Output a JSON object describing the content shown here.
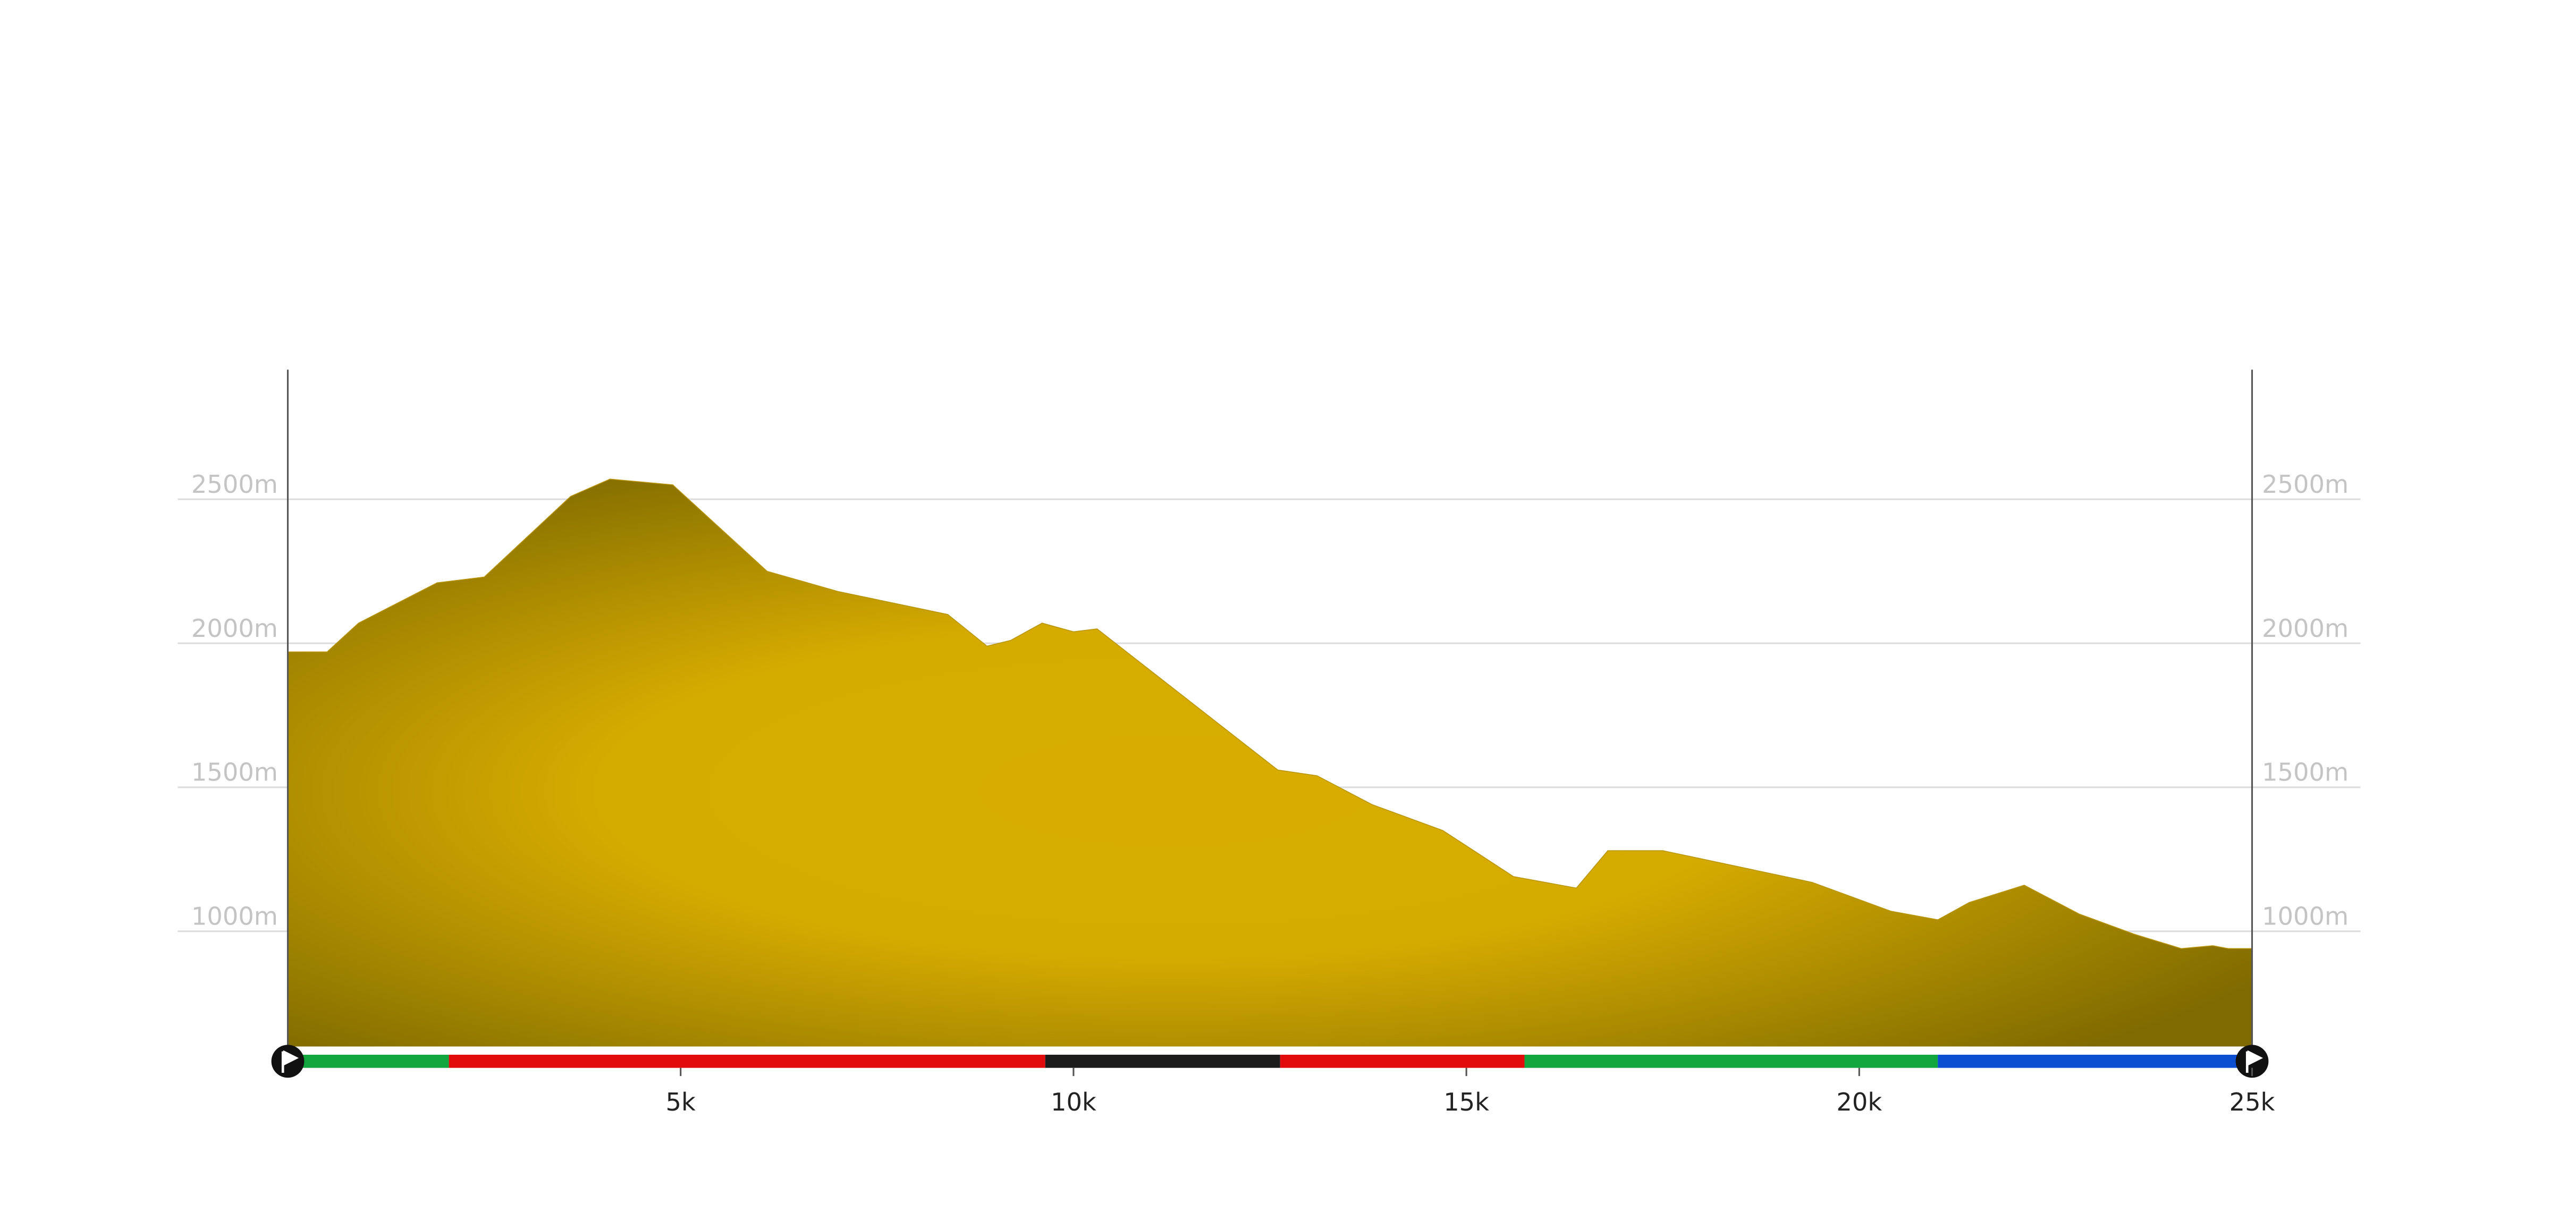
{
  "chart_data": {
    "type": "area",
    "x": [
      0,
      0.5,
      0.9,
      1.9,
      2.5,
      3.6,
      4.1,
      4.9,
      6.1,
      7.0,
      8.4,
      8.9,
      9.2,
      9.6,
      10.0,
      10.3,
      12.6,
      13.1,
      13.8,
      14.7,
      15.6,
      16.4,
      16.8,
      17.5,
      19.4,
      20.4,
      21.0,
      21.4,
      22.1,
      22.8,
      23.5,
      24.1,
      24.5,
      24.7,
      25
    ],
    "y": [
      1970,
      1970,
      2070,
      2210,
      2230,
      2510,
      2570,
      2550,
      2250,
      2180,
      2100,
      1990,
      2010,
      2070,
      2040,
      2050,
      1560,
      1540,
      1440,
      1350,
      1190,
      1150,
      1280,
      1280,
      1170,
      1070,
      1040,
      1100,
      1160,
      1060,
      990,
      940,
      950,
      940,
      940
    ],
    "xlim": [
      0,
      25
    ],
    "ylim": [
      600,
      2950
    ],
    "xticks": [
      {
        "value": 5,
        "label": "5k"
      },
      {
        "value": 10,
        "label": "10k"
      },
      {
        "value": 15,
        "label": "15k"
      },
      {
        "value": 20,
        "label": "20k"
      },
      {
        "value": 25,
        "label": "25k"
      }
    ],
    "yticks": [
      {
        "value": 1000,
        "label": "1000m"
      },
      {
        "value": 1500,
        "label": "1500m"
      },
      {
        "value": 2000,
        "label": "2000m"
      },
      {
        "value": 2500,
        "label": "2500m"
      }
    ],
    "grid": true,
    "segments": [
      {
        "start": 0,
        "end": 2.05,
        "color": "#12a73e"
      },
      {
        "start": 2.05,
        "end": 9.64,
        "color": "#e30b0b"
      },
      {
        "start": 9.64,
        "end": 12.63,
        "color": "#1c1c1c"
      },
      {
        "start": 12.63,
        "end": 15.74,
        "color": "#e30b0b"
      },
      {
        "start": 15.74,
        "end": 21.0,
        "color": "#12a73e"
      },
      {
        "start": 21.0,
        "end": 25,
        "color": "#0d4fd1"
      }
    ]
  }
}
